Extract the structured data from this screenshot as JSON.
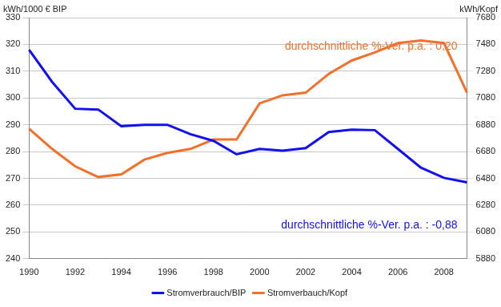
{
  "chart_data": {
    "type": "line",
    "y_label": "kWh/1000 € BIP",
    "y2_label": "kWh/Kopf",
    "categories": [
      1990,
      null,
      1992,
      null,
      1994,
      null,
      1996,
      null,
      1998,
      null,
      2000,
      null,
      2002,
      null,
      2004,
      null,
      2006,
      null,
      2008,
      null
    ],
    "series": [
      {
        "name": "Stromverbrauch/BIP",
        "color": "#1010f0",
        "values": [
          318,
          306,
          296,
          295.7,
          289.5,
          290,
          290,
          286.5,
          284,
          279,
          281,
          280.3,
          281.3,
          287.3,
          288.2,
          288,
          281,
          274,
          270.2,
          268.5
        ]
      },
      {
        "name": "Stromverbauch/Kopf",
        "color": "#f4702a",
        "axis": "y2",
        "values": [
          6850,
          6700,
          6570,
          6490,
          6510,
          6620,
          6670,
          6700,
          6770,
          6770,
          7040,
          7100,
          7120,
          7260,
          7360,
          7420,
          7490,
          7510,
          7490,
          7120
        ]
      }
    ],
    "ylim": [
      240,
      330
    ],
    "yticks": [
      240,
      250,
      260,
      270,
      280,
      290,
      300,
      310,
      320,
      330
    ],
    "y2lim": [
      5880,
      7680
    ],
    "y2ticks": [
      5880,
      6080,
      6280,
      6480,
      6680,
      6880,
      7080,
      7280,
      7480,
      7680
    ],
    "grid": true,
    "legend": "bottom",
    "annotations": [
      {
        "text": "durchschnittliche %-Ver. p.a. : 0,20",
        "color": "#f4702a"
      },
      {
        "text": "durchschnittliche %-Ver. p.a. : -0,88",
        "color": "#1010f0"
      }
    ]
  }
}
